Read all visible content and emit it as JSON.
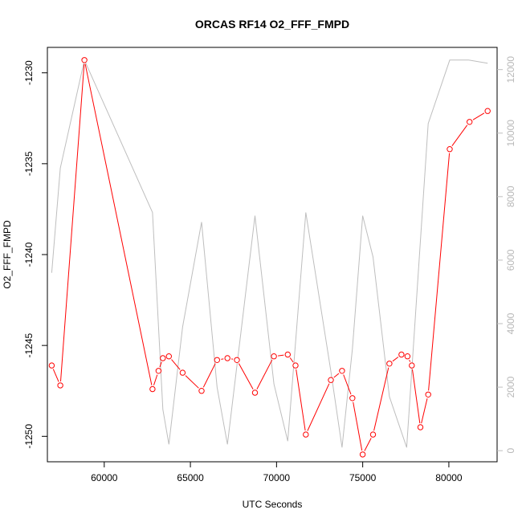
{
  "chart_data": {
    "type": "line",
    "title": "ORCAS RF14 O2_FFF_FMPD",
    "xlabel": "UTC Seconds",
    "ylabel": "O2_FFF_FMPD",
    "xlim": [
      56700,
      82800
    ],
    "ylim": [
      -1251.4,
      -1228.6
    ],
    "y2lim": [
      -350,
      12700
    ],
    "x_ticks": [
      60000,
      65000,
      70000,
      75000,
      80000
    ],
    "y_ticks": [
      -1230,
      -1235,
      -1240,
      -1245,
      -1250
    ],
    "y2_ticks": [
      0,
      2000,
      4000,
      6000,
      8000,
      10000,
      12000
    ],
    "colors": {
      "primary": "#ff0000",
      "secondary": "#bebebe",
      "frame": "#000000"
    },
    "series": [
      {
        "role": "primary",
        "axis": "left",
        "style": "line-with-open-circles",
        "x": [
          56950,
          57450,
          58850,
          62800,
          63150,
          63400,
          63750,
          64550,
          65650,
          66550,
          67150,
          67700,
          68750,
          69850,
          70650,
          71100,
          71700,
          73150,
          73800,
          74400,
          75000,
          75600,
          76550,
          77250,
          77600,
          77850,
          78350,
          78800,
          80050,
          81200,
          82250
        ],
        "y": [
          -1246.1,
          -1247.2,
          -1229.3,
          -1247.4,
          -1246.4,
          -1245.7,
          -1245.6,
          -1246.5,
          -1247.5,
          -1245.8,
          -1245.7,
          -1245.8,
          -1247.6,
          -1245.6,
          -1245.5,
          -1246.1,
          -1249.9,
          -1246.9,
          -1246.4,
          -1247.9,
          -1251.0,
          -1249.9,
          -1246.0,
          -1245.5,
          -1245.6,
          -1246.1,
          -1249.5,
          -1247.7,
          -1234.2,
          -1232.7,
          -1232.1
        ]
      },
      {
        "role": "secondary",
        "axis": "right",
        "style": "line",
        "x": [
          56950,
          57450,
          58850,
          62800,
          63400,
          63750,
          64550,
          65650,
          66550,
          67150,
          68750,
          69850,
          70650,
          71700,
          73150,
          73800,
          74400,
          75000,
          75600,
          76550,
          77550,
          78800,
          80050,
          81150,
          82250
        ],
        "y": [
          5600,
          8900,
          12300,
          7500,
          1300,
          200,
          3900,
          7200,
          2000,
          200,
          7400,
          2100,
          300,
          7500,
          2500,
          100,
          3200,
          7400,
          6100,
          1700,
          100,
          10300,
          12300,
          12300,
          12200
        ]
      }
    ]
  }
}
